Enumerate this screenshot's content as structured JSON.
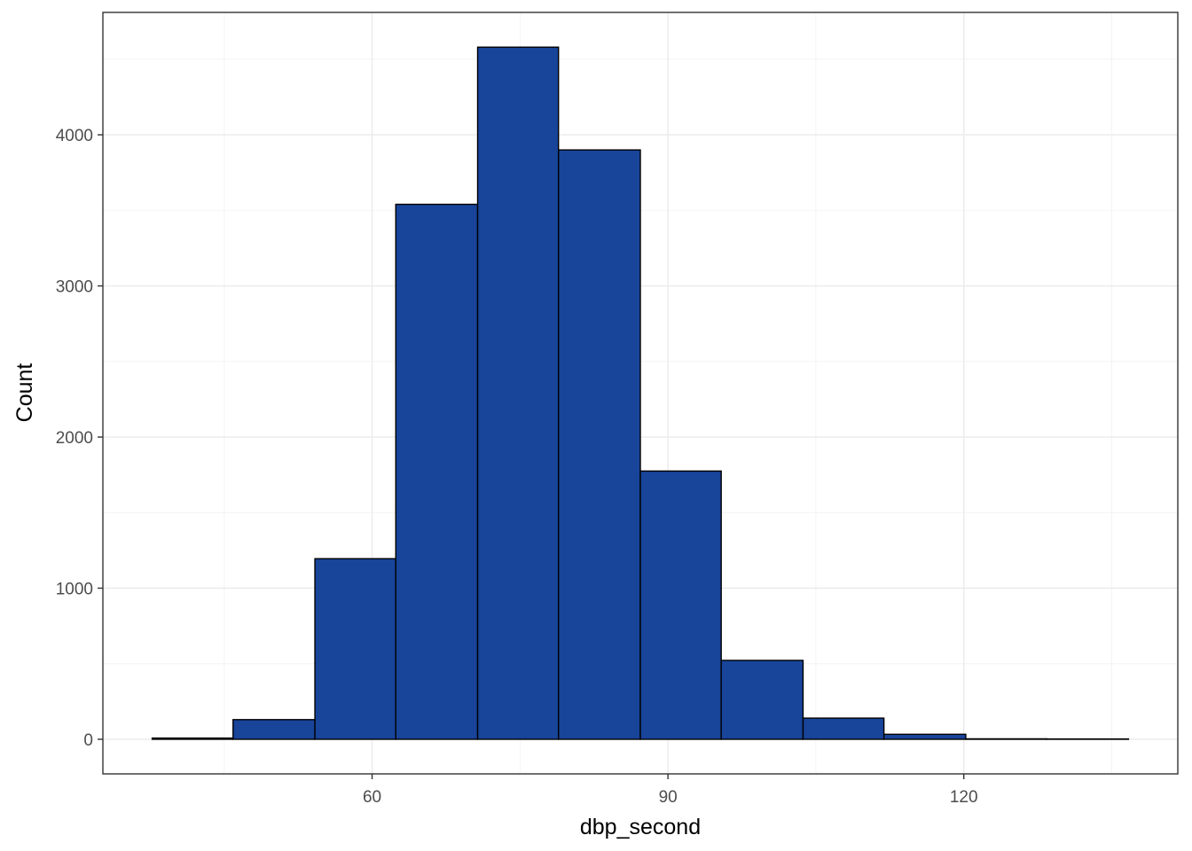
{
  "chart_data": {
    "type": "bar",
    "title": "",
    "xlabel": "dbp_second",
    "ylabel": "Count",
    "bins": [
      {
        "x0": 37.7,
        "x1": 45.9,
        "count": 8
      },
      {
        "x0": 45.9,
        "x1": 54.2,
        "count": 130
      },
      {
        "x0": 54.2,
        "x1": 62.4,
        "count": 1195
      },
      {
        "x0": 62.4,
        "x1": 70.7,
        "count": 3540
      },
      {
        "x0": 70.7,
        "x1": 78.9,
        "count": 4580
      },
      {
        "x0": 78.9,
        "x1": 87.2,
        "count": 3900
      },
      {
        "x0": 87.2,
        "x1": 95.4,
        "count": 1775
      },
      {
        "x0": 95.4,
        "x1": 103.7,
        "count": 522
      },
      {
        "x0": 103.7,
        "x1": 111.9,
        "count": 140
      },
      {
        "x0": 111.9,
        "x1": 120.2,
        "count": 33
      },
      {
        "x0": 120.2,
        "x1": 128.4,
        "count": 3
      },
      {
        "x0": 128.4,
        "x1": 136.7,
        "count": 2
      }
    ],
    "xlim": [
      32.7,
      141.7
    ],
    "ylim": [
      -229,
      4810
    ],
    "x_ticks": [
      60,
      90,
      120
    ],
    "x_minor_ticks": [
      45,
      75,
      105,
      135
    ],
    "y_ticks": [
      0,
      1000,
      2000,
      3000,
      4000
    ],
    "y_minor_ticks": [
      500,
      1500,
      2500,
      3500,
      4500
    ],
    "grid": true,
    "legend": "none",
    "colors": {
      "bar_fill": "#18449A",
      "bar_stroke": "#000000",
      "grid_major": "#ebebeb",
      "grid_minor": "#f4f4f4",
      "panel_border": "#333333",
      "tick_text": "#4d4d4d"
    }
  }
}
